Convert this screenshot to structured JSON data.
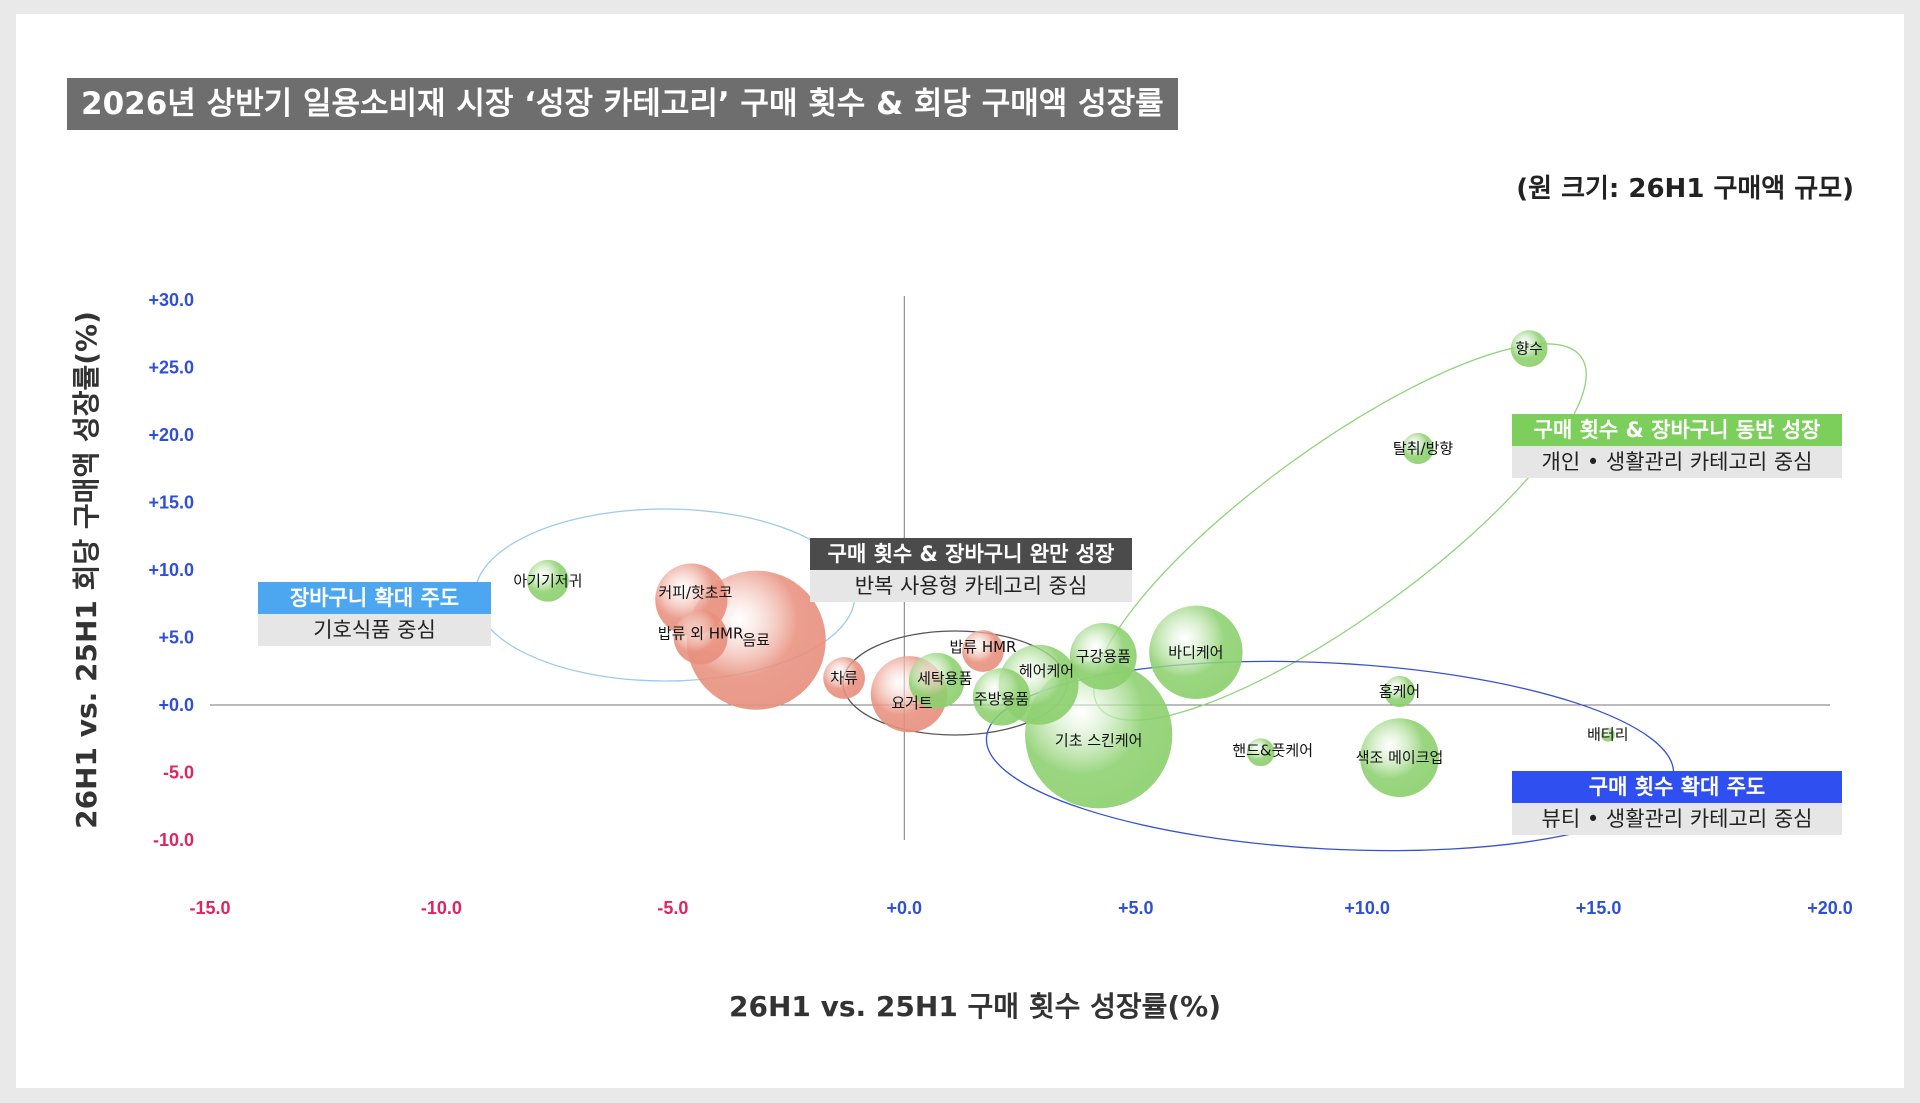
{
  "title": "2026년 상반기 일용소비재 시장 ‘성장 카테고리’ 구매 횟수 & 회당 구매액 성장률",
  "size_note": "(원 크기: 26H1 구매액 규모)",
  "colors": {
    "decline_bubble": "#e8907e",
    "growth_bubble": "#8cd06e",
    "negative_tick": "#e0245e",
    "positive_tick": "#2f4fd8",
    "callout_blue_light": "#4da6f0",
    "callout_dark": "#4b4b4b",
    "callout_green": "#7ccf5a",
    "callout_blue": "#2f4ff0"
  },
  "callouts": [
    {
      "key": "basket",
      "head": "장바구니 확대 주도",
      "sub": "기호식품 중심",
      "color": "#4da6f0"
    },
    {
      "key": "moderate",
      "head": "구매 횟수 & 장바구니 완만 성장",
      "sub": "반복 사용형 카테고리 중심",
      "color": "#4b4b4b"
    },
    {
      "key": "both",
      "head": "구매 횟수 & 장바구니 동반 성장",
      "sub": "개인 • 생활관리 카테고리 중심",
      "color": "#7ccf5a"
    },
    {
      "key": "frequency",
      "head": "구매 횟수 확대 주도",
      "sub": "뷰티 •  생활관리 카테고리 중심",
      "color": "#2f4ff0"
    }
  ],
  "chart_data": {
    "type": "scatter",
    "title": "2026년 상반기 일용소비재 시장 ‘성장 카테고리’ 구매 횟수 & 회당 구매액 성장률",
    "xlabel": "26H1 vs. 25H1 구매 횟수 성장률(%)",
    "ylabel": "26H1 vs. 25H1 회당 구매액 성장률(%)",
    "size_note": "(원 크기: 26H1 구매액 규모)",
    "xlim": [
      -15,
      20
    ],
    "ylim": [
      -10,
      30
    ],
    "x_ticks": [
      "-15.0",
      "-10.0",
      "-5.0",
      "+0.0",
      "+5.0",
      "+10.0",
      "+15.0",
      "+20.0"
    ],
    "y_ticks": [
      "+30.0",
      "+25.0",
      "+20.0",
      "+15.0",
      "+10.0",
      "+5.0",
      "+0.0",
      "-5.0",
      "-10.0"
    ],
    "grid": false,
    "bubble_size_unit": "relative",
    "points": [
      {
        "label": "음료",
        "x": -3.2,
        "y": 4.8,
        "size": 10.0,
        "color": "#e8907e"
      },
      {
        "label": "커피/핫초코",
        "x": -4.6,
        "y": 7.8,
        "size": 2.7,
        "color": "#e8907e"
      },
      {
        "label": "밥류 외 HMR",
        "x": -4.4,
        "y": 5.0,
        "size": 1.5,
        "color": "#e8907e"
      },
      {
        "label": "아기기저귀",
        "x": -7.7,
        "y": 9.2,
        "size": 0.9,
        "color": "#8cd06e"
      },
      {
        "label": "차류",
        "x": -1.3,
        "y": 2.0,
        "size": 0.9,
        "color": "#e8907e"
      },
      {
        "label": "요거트",
        "x": 0.1,
        "y": 0.8,
        "size": 3.0,
        "color": "#e8907e"
      },
      {
        "label": "세탁용품",
        "x": 0.7,
        "y": 1.8,
        "size": 1.6,
        "color": "#8cd06e"
      },
      {
        "label": "밥류 HMR",
        "x": 1.7,
        "y": 4.0,
        "size": 0.9,
        "color": "#e8907e"
      },
      {
        "label": "헤어케어",
        "x": 2.9,
        "y": 1.5,
        "size": 3.3,
        "color": "#8cd06e"
      },
      {
        "label": "주방용품",
        "x": 2.1,
        "y": 0.6,
        "size": 1.7,
        "color": "#8cd06e"
      },
      {
        "label": "기초 스킨케어",
        "x": 4.2,
        "y": -2.2,
        "size": 11.2,
        "color": "#8cd06e"
      },
      {
        "label": "구강용품",
        "x": 4.3,
        "y": 3.6,
        "size": 2.3,
        "color": "#8cd06e"
      },
      {
        "label": "바디케어",
        "x": 6.3,
        "y": 3.9,
        "size": 4.5,
        "color": "#8cd06e"
      },
      {
        "label": "핸드&풋케어",
        "x": 7.7,
        "y": -3.5,
        "size": 0.4,
        "color": "#8cd06e"
      },
      {
        "label": "색조 메이크업",
        "x": 10.7,
        "y": -3.9,
        "size": 3.2,
        "color": "#8cd06e"
      },
      {
        "label": "홈케어",
        "x": 10.7,
        "y": 1.0,
        "size": 0.5,
        "color": "#8cd06e"
      },
      {
        "label": "배터리",
        "x": 15.2,
        "y": -2.2,
        "size": 0.1,
        "color": "#8cd06e"
      },
      {
        "label": "탈취/방향",
        "x": 11.1,
        "y": 19.0,
        "size": 0.5,
        "color": "#8cd06e"
      },
      {
        "label": "향수",
        "x": 13.5,
        "y": 26.4,
        "size": 0.7,
        "color": "#8cd06e"
      }
    ]
  }
}
